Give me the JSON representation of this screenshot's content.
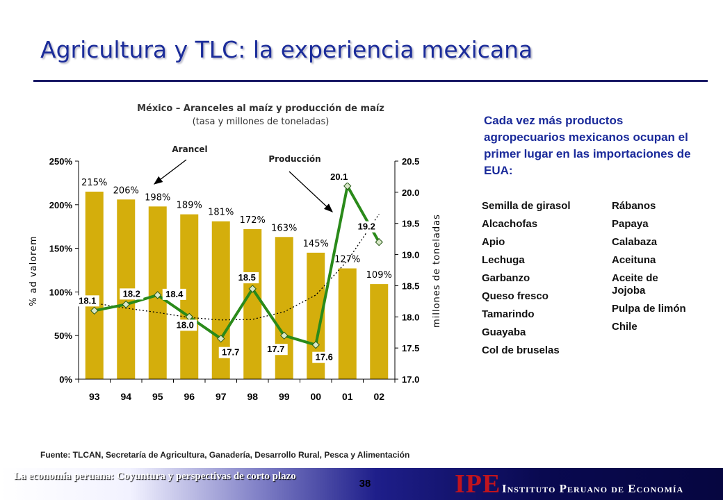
{
  "slide": {
    "title": "Agricultura y TLC: la experiencia mexicana",
    "source": "Fuente: TLCAN, Secretaría de Agricultura, Ganadería, Desarrollo Rural, Pesca y Alimentación",
    "footer_text": "La economía peruana: Coyuntura y perspectivas de corto plazo",
    "page_number": "38",
    "logo": "IPE",
    "institute_name": "Instituto Peruano de Economía"
  },
  "sidebar": {
    "intro": "Cada vez más productos agropecuarios mexicanos ocupan el primer lugar en las importaciones de EUA:",
    "products_left": [
      "Semilla de girasol",
      "Alcachofas",
      "Apio",
      "Lechuga",
      "Garbanzo",
      "Queso fresco",
      "Tamarindo",
      "Guayaba",
      "Col de bruselas"
    ],
    "products_right": [
      "Rábanos",
      "Papaya",
      "Calabaza",
      "Aceituna",
      "Aceite de Jojoba",
      "Pulpa de limón",
      "Chile"
    ]
  },
  "chart_data": {
    "type": "bar",
    "title": "México – Aranceles al maíz y producción de maíz",
    "subtitle": "(tasa y millones de toneladas)",
    "categories": [
      "93",
      "94",
      "95",
      "96",
      "97",
      "98",
      "99",
      "00",
      "01",
      "02"
    ],
    "ylabel_left": "% ad valorem",
    "ylabel_right": "millones de toneladas",
    "yticks_left": [
      "0%",
      "50%",
      "100%",
      "150%",
      "200%",
      "250%"
    ],
    "yticks_right": [
      "17.0",
      "17.5",
      "18.0",
      "18.5",
      "19.0",
      "19.5",
      "20.0",
      "20.5"
    ],
    "ylim_left": [
      0,
      250
    ],
    "ylim_right": [
      17.0,
      20.5
    ],
    "series": [
      {
        "name": "Arancel",
        "type": "bar",
        "axis": "left",
        "color": "#d4ae0c",
        "values": [
          215,
          206,
          198,
          189,
          181,
          172,
          163,
          145,
          127,
          109
        ],
        "labels": [
          "215%",
          "206%",
          "198%",
          "189%",
          "181%",
          "172%",
          "163%",
          "145%",
          "127%",
          "109%"
        ]
      },
      {
        "name": "Producción",
        "type": "line",
        "axis": "right",
        "color": "#2a8a1a",
        "values": [
          18.1,
          18.2,
          18.35,
          18.0,
          17.65,
          18.45,
          17.7,
          17.55,
          20.1,
          19.2
        ],
        "labels": [
          "18.1",
          "18.2",
          "18.4",
          "18.0",
          "17.7",
          "18.5",
          "17.7",
          "17.6",
          "20.1",
          "19.2"
        ]
      },
      {
        "type": "dotted-trend",
        "axis": "right",
        "color": "#000000",
        "values": [
          18.22,
          18.14,
          18.07,
          17.99,
          17.95,
          17.96,
          18.08,
          18.35,
          18.9,
          19.65
        ]
      }
    ],
    "grid": false,
    "legend": "annotations"
  }
}
